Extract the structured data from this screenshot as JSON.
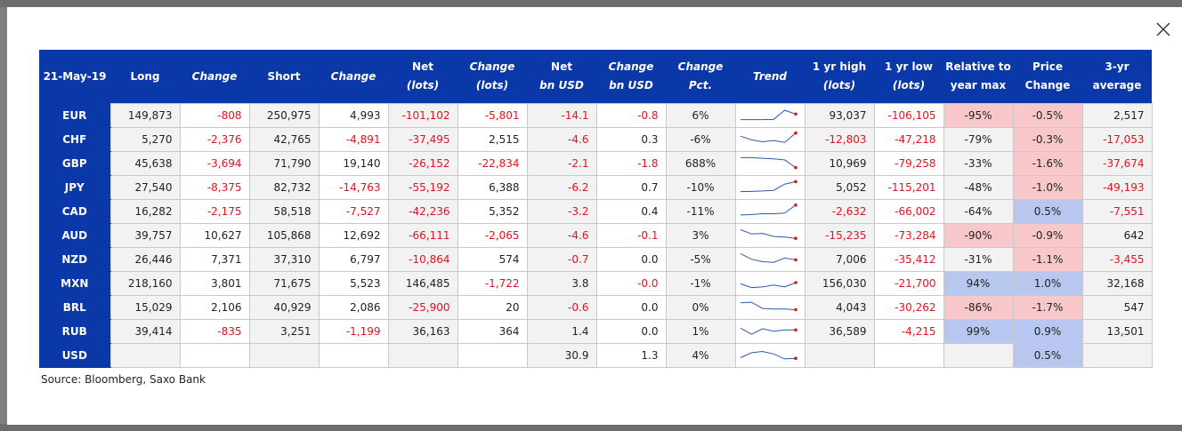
{
  "table": {
    "header": {
      "date": "21-May-19",
      "long": "Long",
      "change1": "Change",
      "short": "Short",
      "change2": "Change",
      "net_lots": [
        "Net",
        "(lots)"
      ],
      "change_lots": [
        "Change",
        "(lots)"
      ],
      "net_bnusd": [
        "Net",
        "bn USD"
      ],
      "change_bnusd": [
        "Change",
        "bn USD"
      ],
      "change_pct": [
        "Change",
        "Pct."
      ],
      "trend": "Trend",
      "yr_high": [
        "1 yr high",
        "(lots)"
      ],
      "yr_low": [
        "1 yr low",
        "(lots)"
      ],
      "rel_max": [
        "Relative to",
        "year max"
      ],
      "price_change": [
        "Price",
        "Change"
      ],
      "avg3yr": [
        "3-yr",
        "average"
      ]
    },
    "rows": [
      {
        "cur": "EUR",
        "long": "149,873",
        "chg1": "-808",
        "short": "250,975",
        "chg2": "4,993",
        "net": "-101,102",
        "chglots": "-5,801",
        "netusd": "-14.1",
        "chgusd": "-0.8",
        "chgpct": "6%",
        "high": "93,037",
        "low": "-106,105",
        "rel": "-95%",
        "price": "-0.5%",
        "avg": "2,517"
      },
      {
        "cur": "CHF",
        "long": "5,270",
        "chg1": "-2,376",
        "short": "42,765",
        "chg2": "-4,891",
        "net": "-37,495",
        "chglots": "2,515",
        "netusd": "-4.6",
        "chgusd": "0.3",
        "chgpct": "-6%",
        "high": "-12,803",
        "low": "-47,218",
        "rel": "-79%",
        "price": "-0.3%",
        "avg": "-17,053"
      },
      {
        "cur": "GBP",
        "long": "45,638",
        "chg1": "-3,694",
        "short": "71,790",
        "chg2": "19,140",
        "net": "-26,152",
        "chglots": "-22,834",
        "netusd": "-2.1",
        "chgusd": "-1.8",
        "chgpct": "688%",
        "high": "10,969",
        "low": "-79,258",
        "rel": "-33%",
        "price": "-1.6%",
        "avg": "-37,674"
      },
      {
        "cur": "JPY",
        "long": "27,540",
        "chg1": "-8,375",
        "short": "82,732",
        "chg2": "-14,763",
        "net": "-55,192",
        "chglots": "6,388",
        "netusd": "-6.2",
        "chgusd": "0.7",
        "chgpct": "-10%",
        "high": "5,052",
        "low": "-115,201",
        "rel": "-48%",
        "price": "-1.0%",
        "avg": "-49,193"
      },
      {
        "cur": "CAD",
        "long": "16,282",
        "chg1": "-2,175",
        "short": "58,518",
        "chg2": "-7,527",
        "net": "-42,236",
        "chglots": "5,352",
        "netusd": "-3.2",
        "chgusd": "0.4",
        "chgpct": "-11%",
        "high": "-2,632",
        "low": "-66,002",
        "rel": "-64%",
        "price": "0.5%",
        "avg": "-7,551"
      },
      {
        "cur": "AUD",
        "long": "39,757",
        "chg1": "10,627",
        "short": "105,868",
        "chg2": "12,692",
        "net": "-66,111",
        "chglots": "-2,065",
        "netusd": "-4.6",
        "chgusd": "-0.1",
        "chgpct": "3%",
        "high": "-15,235",
        "low": "-73,284",
        "rel": "-90%",
        "price": "-0.9%",
        "avg": "642"
      },
      {
        "cur": "NZD",
        "long": "26,446",
        "chg1": "7,371",
        "short": "37,310",
        "chg2": "6,797",
        "net": "-10,864",
        "chglots": "574",
        "netusd": "-0.7",
        "chgusd": "0.0",
        "chgpct": "-5%",
        "high": "7,006",
        "low": "-35,412",
        "rel": "-31%",
        "price": "-1.1%",
        "avg": "-3,455"
      },
      {
        "cur": "MXN",
        "long": "218,160",
        "chg1": "3,801",
        "short": "71,675",
        "chg2": "5,523",
        "net": "146,485",
        "chglots": "-1,722",
        "netusd": "3.8",
        "chgusd": "-0.0",
        "chgpct": "-1%",
        "high": "156,030",
        "low": "-21,700",
        "rel": "94%",
        "price": "1.0%",
        "avg": "32,168"
      },
      {
        "cur": "BRL",
        "long": "15,029",
        "chg1": "2,106",
        "short": "40,929",
        "chg2": "2,086",
        "net": "-25,900",
        "chglots": "20",
        "netusd": "-0.6",
        "chgusd": "0.0",
        "chgpct": "0%",
        "high": "4,043",
        "low": "-30,262",
        "rel": "-86%",
        "price": "-1.7%",
        "avg": "547"
      },
      {
        "cur": "RUB",
        "long": "39,414",
        "chg1": "-835",
        "short": "3,251",
        "chg2": "-1,199",
        "net": "36,163",
        "chglots": "364",
        "netusd": "1.4",
        "chgusd": "0.0",
        "chgpct": "1%",
        "high": "36,589",
        "low": "-4,215",
        "rel": "99%",
        "price": "0.9%",
        "avg": "13,501"
      },
      {
        "cur": "USD",
        "long": "",
        "chg1": "",
        "short": "",
        "chg2": "",
        "net": "",
        "chglots": "",
        "netusd": "30.9",
        "chgusd": "1.3",
        "chgpct": "4%",
        "high": "",
        "low": "",
        "rel": "",
        "price": "0.5%",
        "avg": ""
      }
    ],
    "trend_series": {
      "EUR": [
        0.1,
        0.1,
        0.1,
        0.12,
        0.85,
        0.55
      ],
      "CHF": [
        0.7,
        0.4,
        0.25,
        0.35,
        0.2,
        0.95
      ],
      "GBP": [
        0.9,
        0.9,
        0.85,
        0.8,
        0.72,
        0.1
      ],
      "JPY": [
        0.1,
        0.12,
        0.15,
        0.2,
        0.7,
        0.9
      ],
      "CAD": [
        0.15,
        0.18,
        0.25,
        0.25,
        0.3,
        0.95
      ],
      "AUD": [
        0.9,
        0.55,
        0.6,
        0.35,
        0.3,
        0.2
      ],
      "NZD": [
        0.9,
        0.45,
        0.25,
        0.2,
        0.55,
        0.4
      ],
      "MXN": [
        0.4,
        0.1,
        0.15,
        0.3,
        0.15,
        0.5
      ],
      "BRL": [
        0.8,
        0.85,
        0.35,
        0.3,
        0.3,
        0.25
      ],
      "RUB": [
        0.7,
        0.2,
        0.65,
        0.45,
        0.55,
        0.55
      ],
      "USD": [
        0.25,
        0.65,
        0.75,
        0.55,
        0.15,
        0.2
      ]
    },
    "colors": {
      "header_bg": "#0b38a8",
      "negative": "#e0141e",
      "pink": "#f8c7c9",
      "blue": "#b7c7f0",
      "trend_line": "#2f5aa8",
      "trend_dot": "#e0141e"
    }
  },
  "source": "Source: Bloomberg, Saxo Bank",
  "close_icon": "close-icon"
}
